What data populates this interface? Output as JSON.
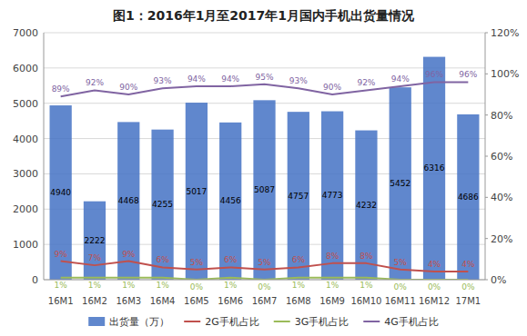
{
  "chart_data": {
    "type": "bar",
    "title": "图1：2016年1月至2017年1月国内手机出货量情况",
    "categories": [
      "16M1",
      "16M2",
      "16M3",
      "16M4",
      "16M5",
      "16M6",
      "16M7",
      "16M8",
      "16M9",
      "16M10",
      "16M11",
      "16M12",
      "17M1"
    ],
    "series": [
      {
        "name": "出货量（万）",
        "type": "bar",
        "color": "#4472C4",
        "values": [
          4940,
          2222,
          4468,
          4255,
          5017,
          4456,
          5087,
          4757,
          4773,
          4232,
          5452,
          6316,
          4686
        ]
      },
      {
        "name": "2G手机占比",
        "type": "line",
        "axis": "y2",
        "color": "#C0504D",
        "values": [
          9,
          7,
          9,
          6,
          5,
          6,
          5,
          6,
          8,
          8,
          5,
          4,
          4
        ],
        "value_labels": [
          "9%",
          "7%",
          "9%",
          "6%",
          "5%",
          "6%",
          "5%",
          "6%",
          "8%",
          "8%",
          "5%",
          "4%",
          "4%"
        ]
      },
      {
        "name": "3G手机占比",
        "type": "line",
        "axis": "y2",
        "color": "#9BBB59",
        "values": [
          1,
          1,
          1,
          1,
          0,
          1,
          0,
          1,
          1,
          1,
          0,
          0,
          0
        ],
        "value_labels": [
          "1%",
          "1%",
          "1%",
          "1%",
          "0%",
          "1%",
          "0%",
          "1%",
          "1%",
          "1%",
          "0%",
          "0%",
          "0%"
        ]
      },
      {
        "name": "4G手机占比",
        "type": "line",
        "axis": "y2",
        "color": "#8064A2",
        "values": [
          89,
          92,
          90,
          93,
          94,
          94,
          95,
          93,
          90,
          92,
          94,
          96,
          96
        ],
        "value_labels": [
          "89%",
          "92%",
          "90%",
          "93%",
          "94%",
          "94%",
          "95%",
          "93%",
          "90%",
          "92%",
          "94%",
          "96%",
          "96%"
        ]
      }
    ],
    "ylim": [
      0,
      7000
    ],
    "yticks": [
      0,
      1000,
      2000,
      3000,
      4000,
      5000,
      6000,
      7000
    ],
    "y2lim": [
      0,
      120
    ],
    "y2ticks": [
      {
        "value": 0,
        "label": "0%"
      },
      {
        "value": 20,
        "label": "20%"
      },
      {
        "value": 40,
        "label": "40%"
      },
      {
        "value": 60,
        "label": "60%"
      },
      {
        "value": 80,
        "label": "80%"
      },
      {
        "value": 100,
        "label": "100%"
      },
      {
        "value": 120,
        "label": "120%"
      }
    ],
    "grid": true,
    "data_labels": true,
    "legend": "bottom"
  }
}
